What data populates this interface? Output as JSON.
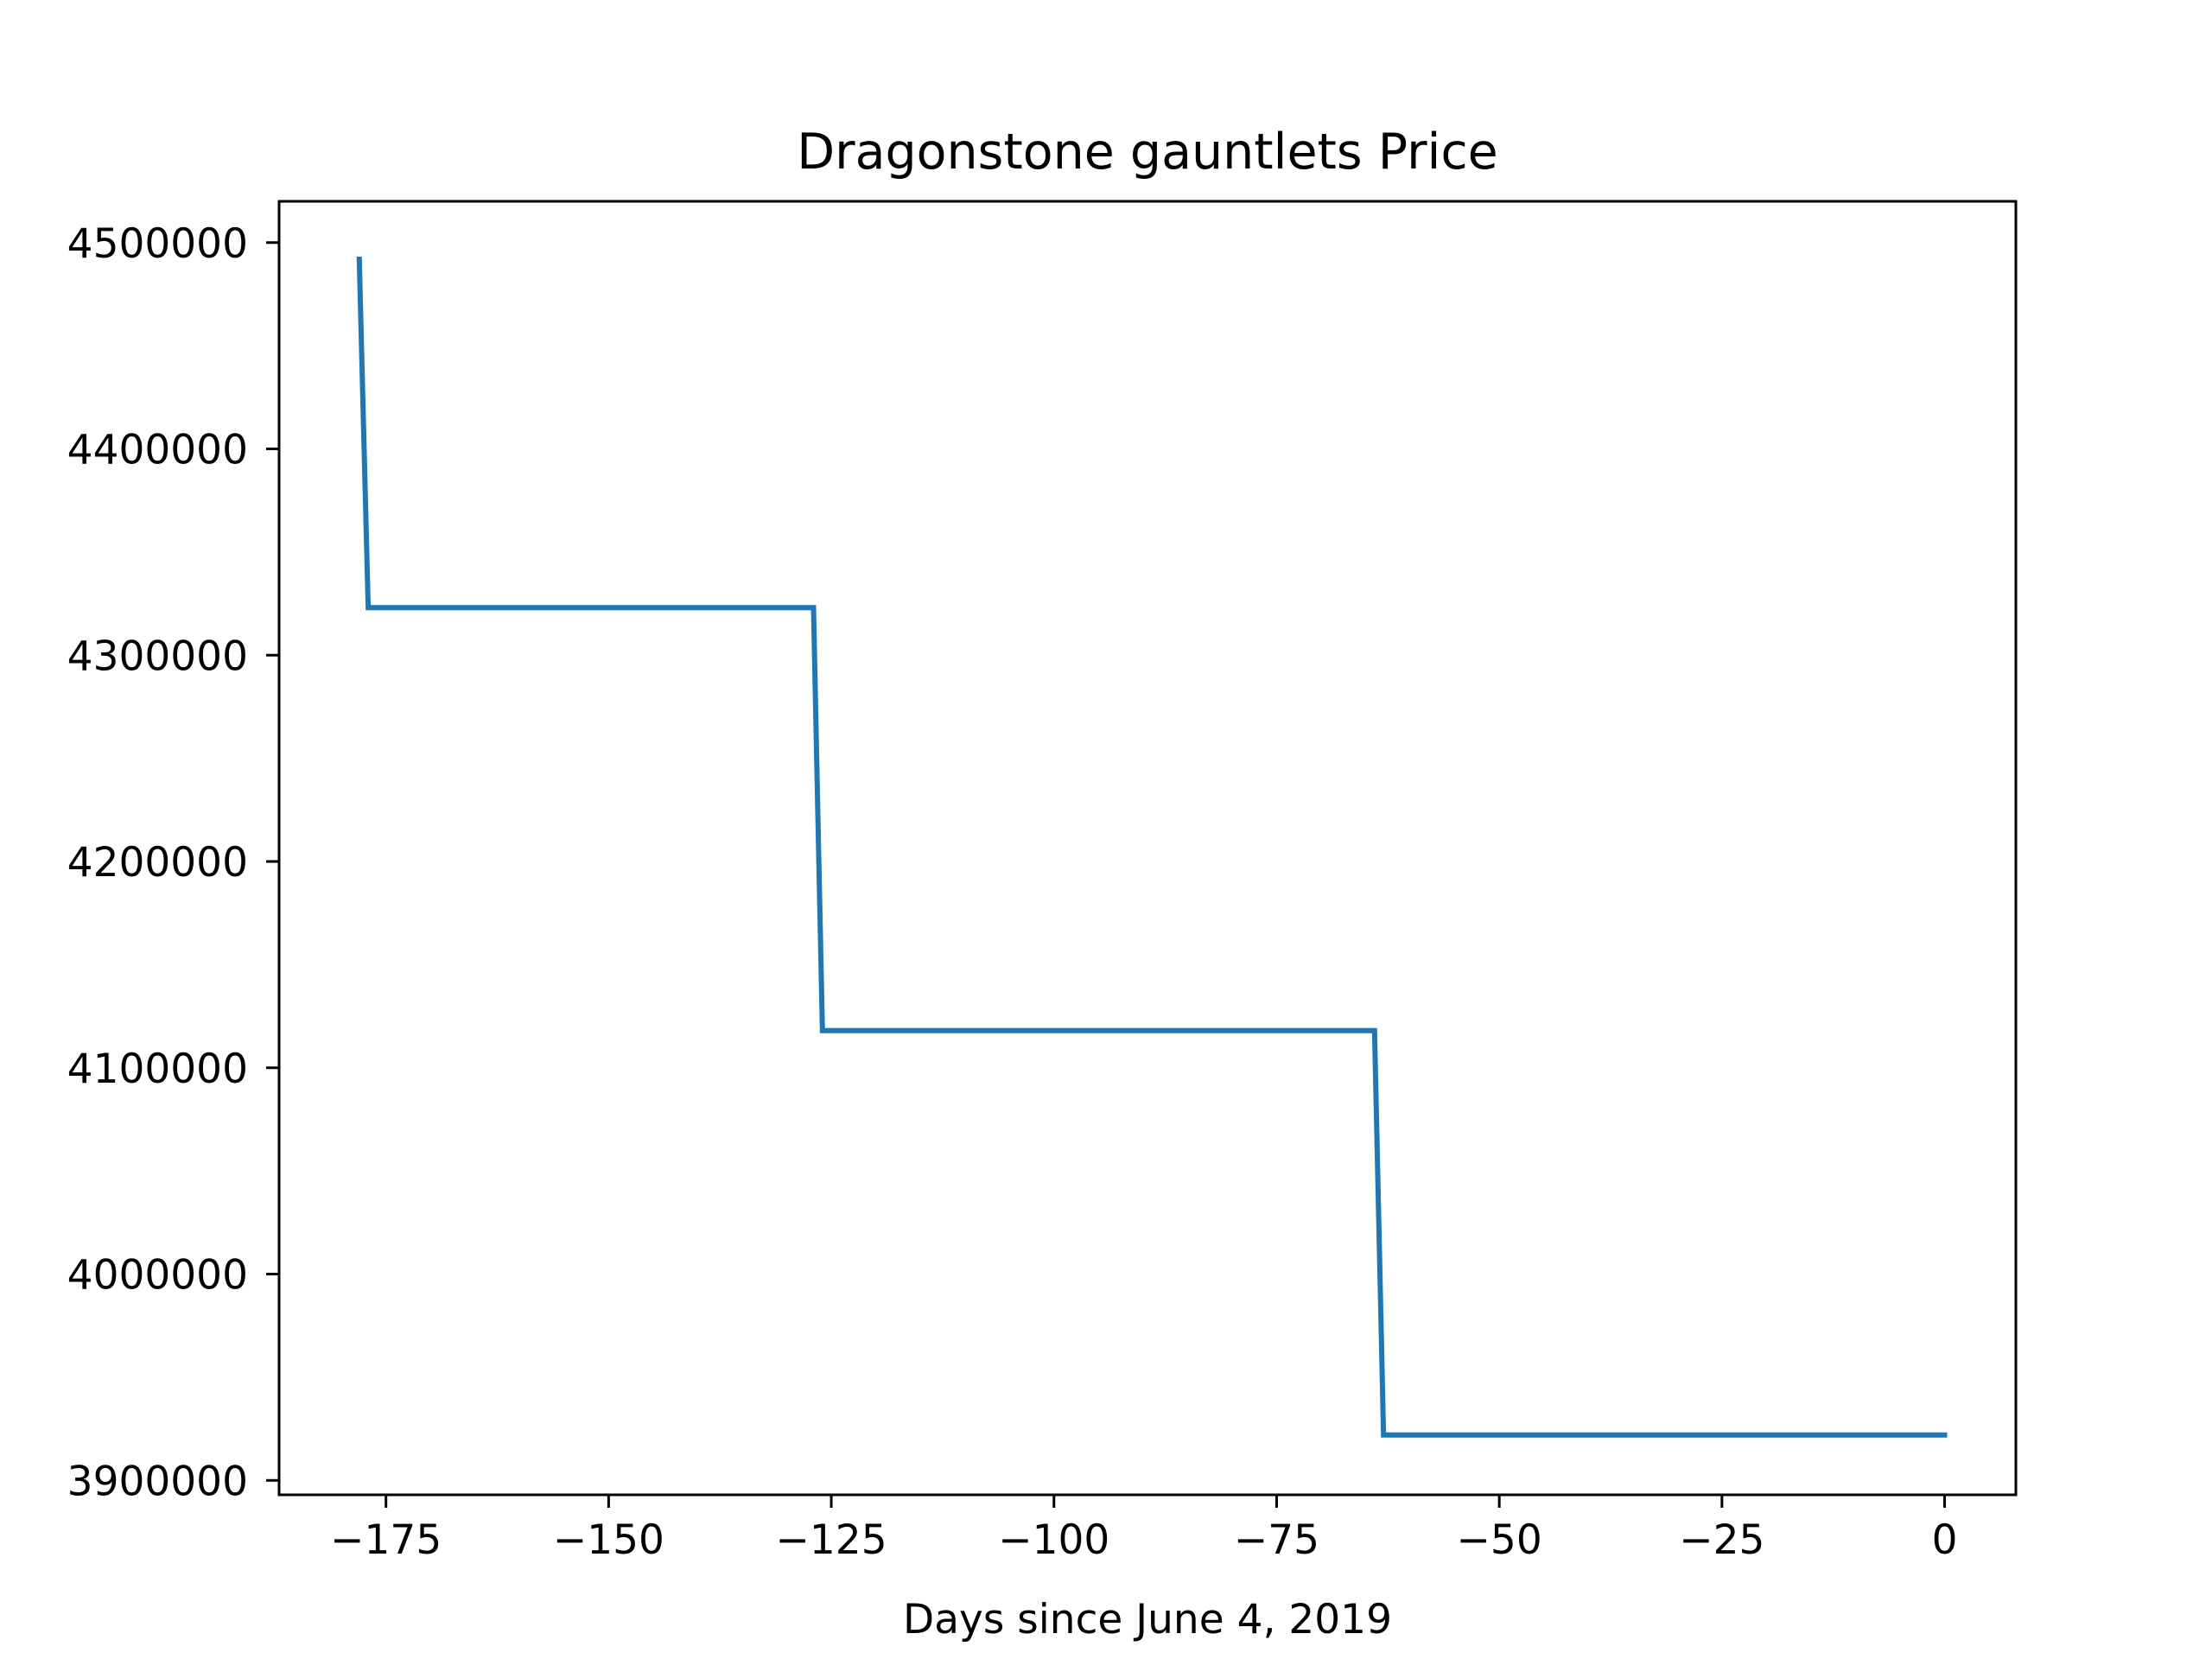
{
  "chart_data": {
    "type": "line",
    "title": "Dragonstone gauntlets Price",
    "xlabel": "Days since June 4, 2019",
    "ylabel": "",
    "xlim": [
      -187,
      8
    ],
    "ylim": [
      3893000,
      4520000
    ],
    "xticks": [
      -175,
      -150,
      -125,
      -100,
      -75,
      -50,
      -25,
      0
    ],
    "xtick_labels": [
      "−175",
      "−150",
      "−125",
      "−100",
      "−75",
      "−50",
      "−25",
      "0"
    ],
    "yticks": [
      3900000,
      4000000,
      4100000,
      4200000,
      4300000,
      4400000,
      4500000
    ],
    "ytick_labels": [
      "3900000",
      "4000000",
      "4100000",
      "4200000",
      "4300000",
      "4400000",
      "4500000"
    ],
    "grid": false,
    "series": [
      {
        "name": "price",
        "color": "#1f77b4",
        "x": [
          -178,
          -177,
          -127,
          -126,
          -64,
          -63,
          0
        ],
        "y": [
          4492000,
          4323000,
          4323000,
          4118000,
          4118000,
          3922000,
          3922000
        ]
      }
    ]
  }
}
